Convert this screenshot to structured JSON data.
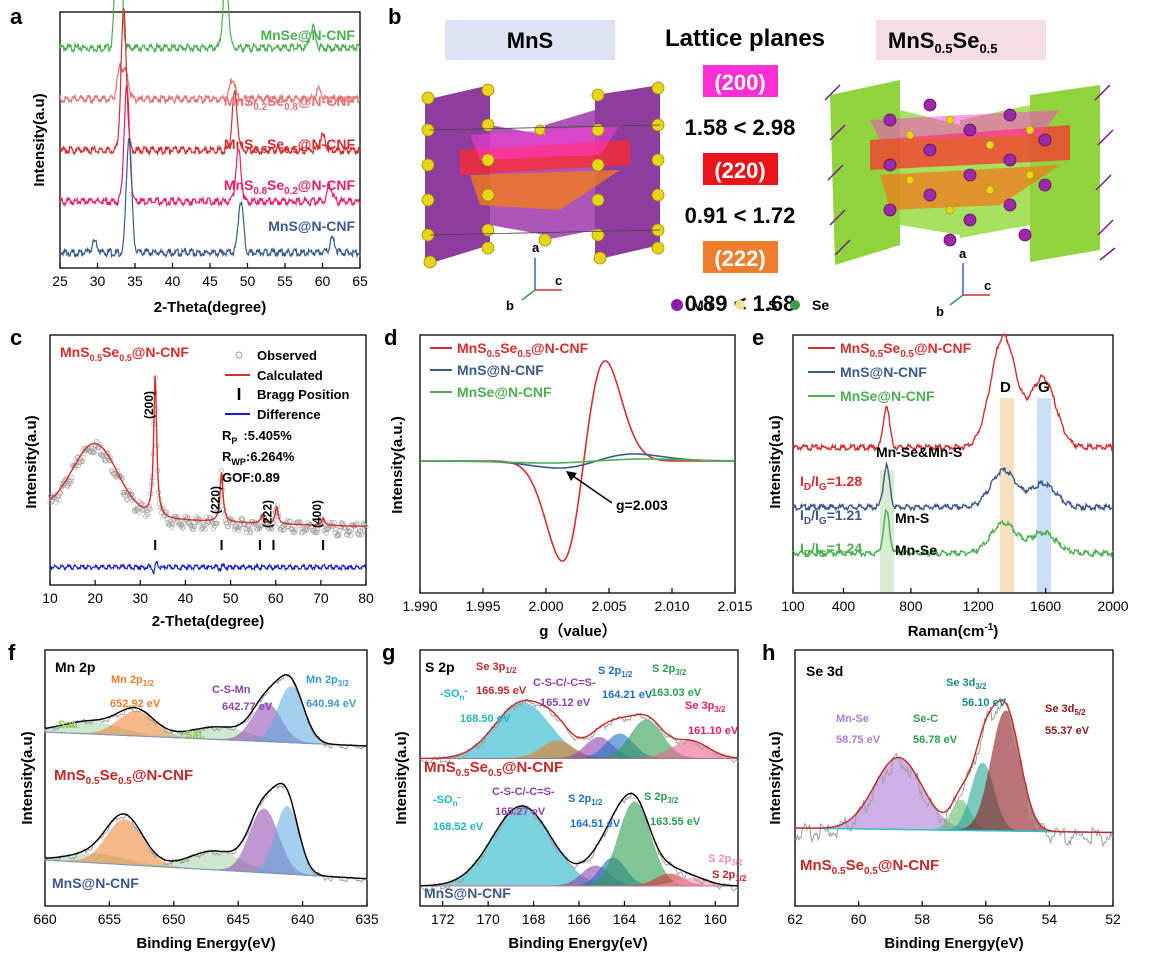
{
  "panel_labels": [
    "a",
    "b",
    "c",
    "d",
    "e",
    "f",
    "g",
    "h"
  ],
  "colors": {
    "green": "#4caf50",
    "salmon": "#e57373",
    "red": "#d32f2f",
    "pink": "#e91e63",
    "blue": "#3a5a8c",
    "orange": "#ef7d2e",
    "magenta": "#ff2fd6",
    "cyan": "#21b5c7",
    "purple": "#8e44ad"
  },
  "panel_b": {
    "mns_label": "MnS",
    "lattice_title": "Lattice planes",
    "mnsse_label": "MnS",
    "mnsse_sub1": "0.5",
    "mnsse_se": "Se",
    "mnsse_sub2": "0.5",
    "planes": [
      {
        "hkl": "(200)",
        "ratio": "1.58 < 2.98",
        "color": "#ff2fd6"
      },
      {
        "hkl": "(220)",
        "ratio": "0.91 < 1.72",
        "color": "#e8141a"
      },
      {
        "hkl": "(222)",
        "ratio": "0.89 < 1.68",
        "color": "#ef7d2e"
      }
    ],
    "axis_a": "a",
    "axis_b": "b",
    "axis_c": "c",
    "legend": [
      "Mn",
      "S",
      "Se"
    ]
  },
  "chart_data": [
    {
      "panel": "a",
      "type": "line",
      "xlabel": "2-Theta(degree)",
      "ylabel": "Intensity(a.u)",
      "xlim": [
        25,
        65
      ],
      "xticks": [
        25,
        30,
        35,
        40,
        45,
        50,
        55,
        60,
        65
      ],
      "series": [
        {
          "name": "MnSe@N-CNF",
          "label_parts": [
            "MnSe@N-CNF"
          ],
          "color": "#4caf50",
          "baseline": 0.86,
          "peaks": [
            [
              32.8,
              0.8
            ],
            [
              47.1,
              0.28
            ],
            [
              58.7,
              0.08
            ]
          ]
        },
        {
          "name": "MnS0.2Se0.8@N-CNF",
          "label_parts": [
            "MnS",
            "0.2",
            "Se",
            "0.8",
            "@N-CNF"
          ],
          "color": "#e57373",
          "baseline": 0.66,
          "peaks": [
            [
              33.0,
              0.12
            ],
            [
              33.8,
              0.1
            ],
            [
              48.0,
              0.08
            ],
            [
              59.5,
              0.04
            ]
          ]
        },
        {
          "name": "MnS0.5Se0.5@N-CNF",
          "label_parts": [
            "MnS",
            "0.5",
            "Se",
            "0.5",
            "@N-CNF"
          ],
          "color": "#d32f2f",
          "baseline": 0.46,
          "peaks": [
            [
              33.5,
              0.55
            ],
            [
              48.3,
              0.22
            ],
            [
              60.0,
              0.06
            ]
          ]
        },
        {
          "name": "MnS0.8Se0.2@N-CNF",
          "label_parts": [
            "MnS",
            "0.8",
            "Se",
            "0.2",
            "@N-CNF"
          ],
          "color": "#e91e63",
          "baseline": 0.26,
          "peaks": [
            [
              33.9,
              0.45
            ],
            [
              48.8,
              0.2
            ],
            [
              61.0,
              0.06
            ]
          ]
        },
        {
          "name": "MnS@N-CNF",
          "label_parts": [
            "MnS@N-CNF"
          ],
          "color": "#3a5a8c",
          "baseline": 0.06,
          "peaks": [
            [
              29.6,
              0.04
            ],
            [
              34.2,
              0.45
            ],
            [
              49.1,
              0.2
            ],
            [
              61.3,
              0.05
            ]
          ]
        }
      ]
    },
    {
      "panel": "c",
      "type": "line",
      "title_parts": [
        "MnS",
        "0.5",
        "Se",
        "0.5",
        "@N-CNF"
      ],
      "xlabel": "2-Theta(degree)",
      "ylabel": "Intensity(a.u)",
      "xlim": [
        10,
        80
      ],
      "xticks": [
        10,
        20,
        30,
        40,
        50,
        60,
        70,
        80
      ],
      "legend": [
        "Observed",
        "Calculated",
        "Bragg Position",
        "Difference"
      ],
      "rp": "R",
      "rp_sub": "P",
      "rp_val": ":5.405%",
      "rwp": "R",
      "rwp_sub": "WP",
      "rwp_val": ":6.264%",
      "gof": "GOF:0.89",
      "peak_labels": [
        {
          "x": 33.3,
          "text": "(200)"
        },
        {
          "x": 48.0,
          "text": "(220)"
        },
        {
          "x": 59.5,
          "text": "(222)"
        },
        {
          "x": 70.5,
          "text": "(400)"
        }
      ],
      "bragg_positions": [
        33.3,
        48.0,
        56.5,
        59.5,
        70.5
      ],
      "broad_hump": [
        20,
        0.5
      ],
      "peaks": [
        [
          33.3,
          1.0
        ],
        [
          48.0,
          0.35
        ],
        [
          57.0,
          0.06
        ],
        [
          60.2,
          0.12
        ],
        [
          70.5,
          0.05
        ]
      ]
    },
    {
      "panel": "d",
      "type": "line",
      "xlabel": "g（value）",
      "ylabel": "Intensity(a.u.)",
      "xlim": [
        1.99,
        2.015
      ],
      "xticks": [
        "1.990",
        "1.995",
        "2.000",
        "2.005",
        "2.010",
        "2.015"
      ],
      "annotation": "g=2.003",
      "series": [
        {
          "name": "MnS0.5Se0.5@N-CNF",
          "label_parts": [
            "MnS",
            "0.5",
            "Se",
            "0.5",
            "@N-CNF"
          ],
          "color": "#d32f2f",
          "amp": 1.0,
          "center": 2.003,
          "width": 0.0017
        },
        {
          "name": "MnS@N-CNF",
          "label_parts": [
            "MnS@N-CNF"
          ],
          "color": "#3a5a8c",
          "amp": 0.07,
          "center": 2.004,
          "width": 0.003
        },
        {
          "name": "MnSe@N-CNF",
          "label_parts": [
            "MnSe@N-CNF"
          ],
          "color": "#4caf50",
          "amp": 0.02,
          "center": 2.004,
          "width": 0.004
        }
      ]
    },
    {
      "panel": "e",
      "type": "line",
      "xlabel": "Raman(cm",
      "xlabel_sup": "-1",
      "xlabel_end": ")",
      "ylabel": "Intensity(a.u)",
      "xlim": [
        100,
        2000
      ],
      "xticks": [
        100,
        400,
        800,
        1200,
        1600,
        2000
      ],
      "band_labels": [
        "D",
        "G"
      ],
      "mode_labels": [
        "Mn-Se&Mn-S",
        "Mn-S",
        "Mn-Se"
      ],
      "series": [
        {
          "name": "MnS0.5Se0.5@N-CNF",
          "label_parts": [
            "MnS",
            "0.5",
            "Se",
            "0.5",
            "@N-CNF"
          ],
          "color": "#d32f2f",
          "ratio": "1.28",
          "baseline": 0.62,
          "peaks": [
            [
              655,
              0.18
            ],
            [
              1350,
              0.48
            ],
            [
              1585,
              0.3
            ]
          ]
        },
        {
          "name": "MnS@N-CNF",
          "label_parts": [
            "MnS@N-CNF"
          ],
          "color": "#3a5a8c",
          "ratio": "1.21",
          "baseline": 0.36,
          "peaks": [
            [
              655,
              0.18
            ],
            [
              1350,
              0.16
            ],
            [
              1585,
              0.1
            ]
          ]
        },
        {
          "name": "MnSe@N-CNF",
          "label_parts": [
            "MnSe@N-CNF"
          ],
          "color": "#4caf50",
          "ratio": "1.24",
          "baseline": 0.16,
          "peaks": [
            [
              655,
              0.18
            ],
            [
              1350,
              0.13
            ],
            [
              1585,
              0.09
            ]
          ]
        }
      ],
      "ratio_prefix": "I",
      "ratio_sub1": "D",
      "ratio_mid": "/I",
      "ratio_sub2": "G",
      "ratio_eq": "="
    },
    {
      "panel": "f",
      "type": "line",
      "title": "Mn 2p",
      "xlabel": "Binding Energy(eV)",
      "ylabel": "Intensity(a.u)",
      "xlim": [
        660,
        635
      ],
      "xticks": [
        660,
        655,
        650,
        645,
        640,
        635
      ],
      "sample_top_parts": [
        "MnS",
        "0.5",
        "Se",
        "0.5",
        "@N-CNF"
      ],
      "sample_bottom": "MnS@N-CNF",
      "components": [
        {
          "name": "Mn 2p1/2",
          "label": "Mn 2p",
          "sub": "1/2",
          "value": "652.92 eV",
          "color": "#ef7d2e"
        },
        {
          "name": "C-S-Mn",
          "label": "C-S-Mn",
          "value": "642.77 eV",
          "color": "#8e44ad"
        },
        {
          "name": "Mn 2p3/2",
          "label": "Mn 2p",
          "sub": "3/2",
          "value": "640.94 eV",
          "color": "#3a9bd4"
        },
        {
          "name": "Sat.",
          "label": "Sat.",
          "color": "#8bc34a"
        }
      ]
    },
    {
      "panel": "g",
      "type": "line",
      "title": "S 2p",
      "xlabel": "Binding Energy(eV)",
      "ylabel": "Intensity(a.u)",
      "xlim": [
        173,
        159
      ],
      "xticks": [
        172,
        170,
        168,
        166,
        164,
        162,
        160
      ],
      "sample_top_parts": [
        "MnS",
        "0.5",
        "Se",
        "0.5",
        "@N-CNF"
      ],
      "sample_bottom": "MnS@N-CNF",
      "top_components": [
        {
          "label": "-SO",
          "sub": "n",
          "sup": "-",
          "value": "168.50 eV",
          "color": "#21b5c7"
        },
        {
          "label": "Se 3p",
          "sub": "1/2",
          "value": "166.95 eV",
          "color": "#c62828"
        },
        {
          "label": "C-S-C/-C=S-",
          "value": "165.12 eV",
          "color": "#8e44ad"
        },
        {
          "label": "S 2p",
          "sub": "1/2",
          "value": "164.21 eV",
          "color": "#1e6fc9"
        },
        {
          "label": "S 2p",
          "sub": "3/2",
          "value": "163.03 eV",
          "color": "#2e9e4f"
        },
        {
          "label": "Se 3p",
          "sub": "3/2",
          "value": "161.10 eV",
          "color": "#e91e63"
        }
      ],
      "bottom_components": [
        {
          "label": "-SO",
          "sub": "n",
          "sup": "-",
          "value": "168.52 eV",
          "color": "#21b5c7"
        },
        {
          "label": "C-S-C/-C=S-",
          "value": "165.27 eV",
          "color": "#8e44ad"
        },
        {
          "label": "S 2p",
          "sub": "1/2",
          "value": "164.51 eV",
          "color": "#1e6fc9"
        },
        {
          "label": "S 2p",
          "sub": "3/2",
          "value": "163.55 eV",
          "color": "#2e9e4f"
        },
        {
          "label": "S 2p",
          "sub": "3/2",
          "value": "",
          "color": "#f48fb1"
        },
        {
          "label": "S 2p",
          "sub": "1/2",
          "value": "",
          "color": "#c62828"
        }
      ]
    },
    {
      "panel": "h",
      "type": "line",
      "title": "Se 3d",
      "xlabel": "Binding Energy(eV)",
      "ylabel": "Intensity(a.u)",
      "xlim": [
        62,
        52
      ],
      "xticks": [
        62,
        60,
        58,
        56,
        54,
        52
      ],
      "sample_parts": [
        "MnS",
        "0.5",
        "Se",
        "0.5",
        "@N-CNF"
      ],
      "components": [
        {
          "label": "Mn-Se",
          "value": "58.75 eV",
          "color": "#b07cd8"
        },
        {
          "label": "Se-C",
          "value": "56.78 eV",
          "color": "#2e9e4f"
        },
        {
          "label": "Se 3d",
          "sub": "3/2",
          "value": "56.10 eV",
          "color": "#1a8a8a"
        },
        {
          "label": "Se 3d",
          "sub": "5/2",
          "value": "55.37 eV",
          "color": "#8b1a1a"
        }
      ]
    }
  ]
}
